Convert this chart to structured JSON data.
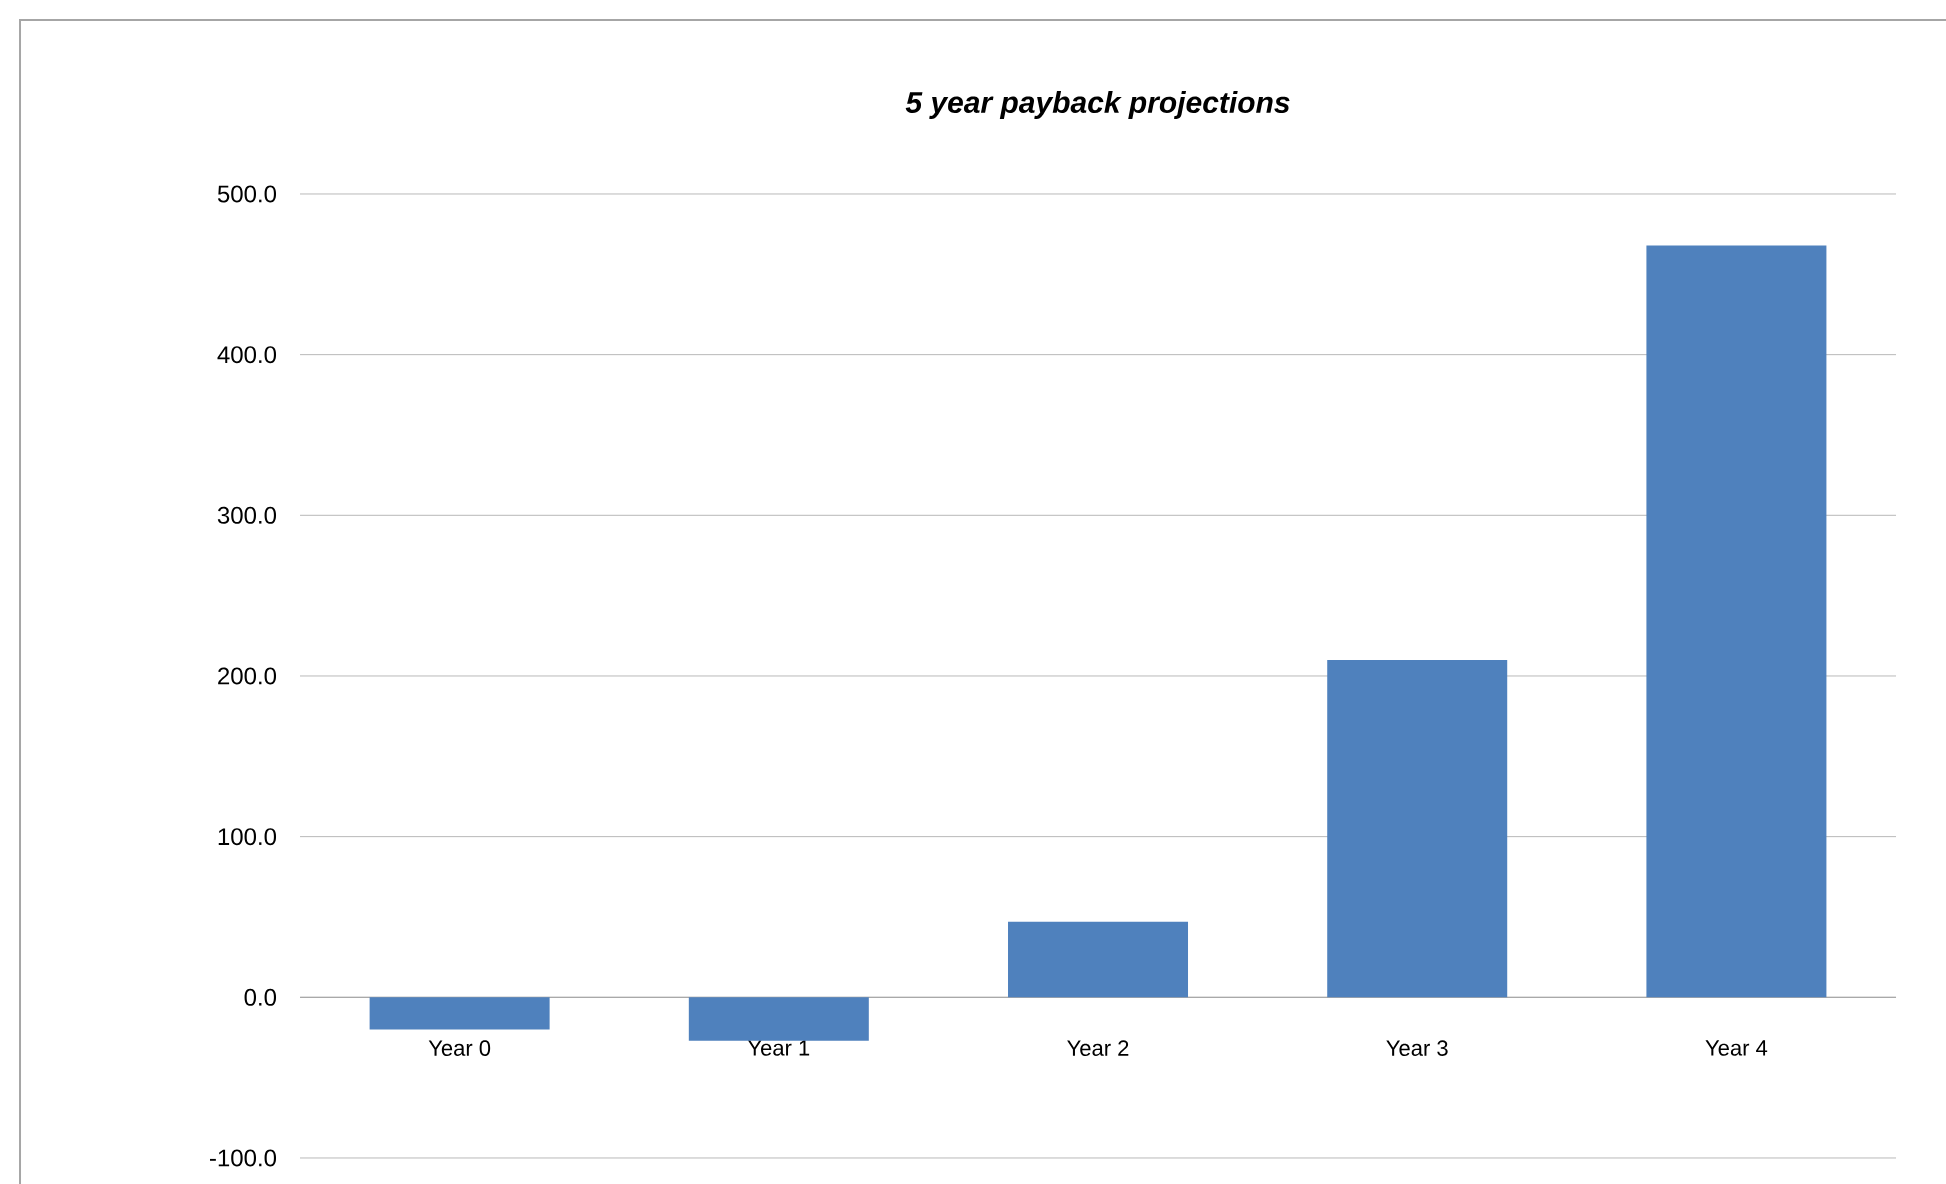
{
  "chart_data": {
    "type": "bar",
    "title": "5 year payback projections",
    "categories": [
      "Year 0",
      "Year 1",
      "Year 2",
      "Year 3",
      "Year 4"
    ],
    "values": [
      -20,
      -27,
      47,
      210,
      468
    ],
    "color": "#4f81bd",
    "ylim": [
      -100,
      500
    ],
    "yticks": [
      {
        "value": -100,
        "label": "-100.0"
      },
      {
        "value": 0,
        "label": "0.0"
      },
      {
        "value": 100,
        "label": "100.0"
      },
      {
        "value": 200,
        "label": "200.0"
      },
      {
        "value": 300,
        "label": "300.0"
      },
      {
        "value": 400,
        "label": "400.0"
      },
      {
        "value": 500,
        "label": "500.0"
      }
    ],
    "grid": true
  }
}
